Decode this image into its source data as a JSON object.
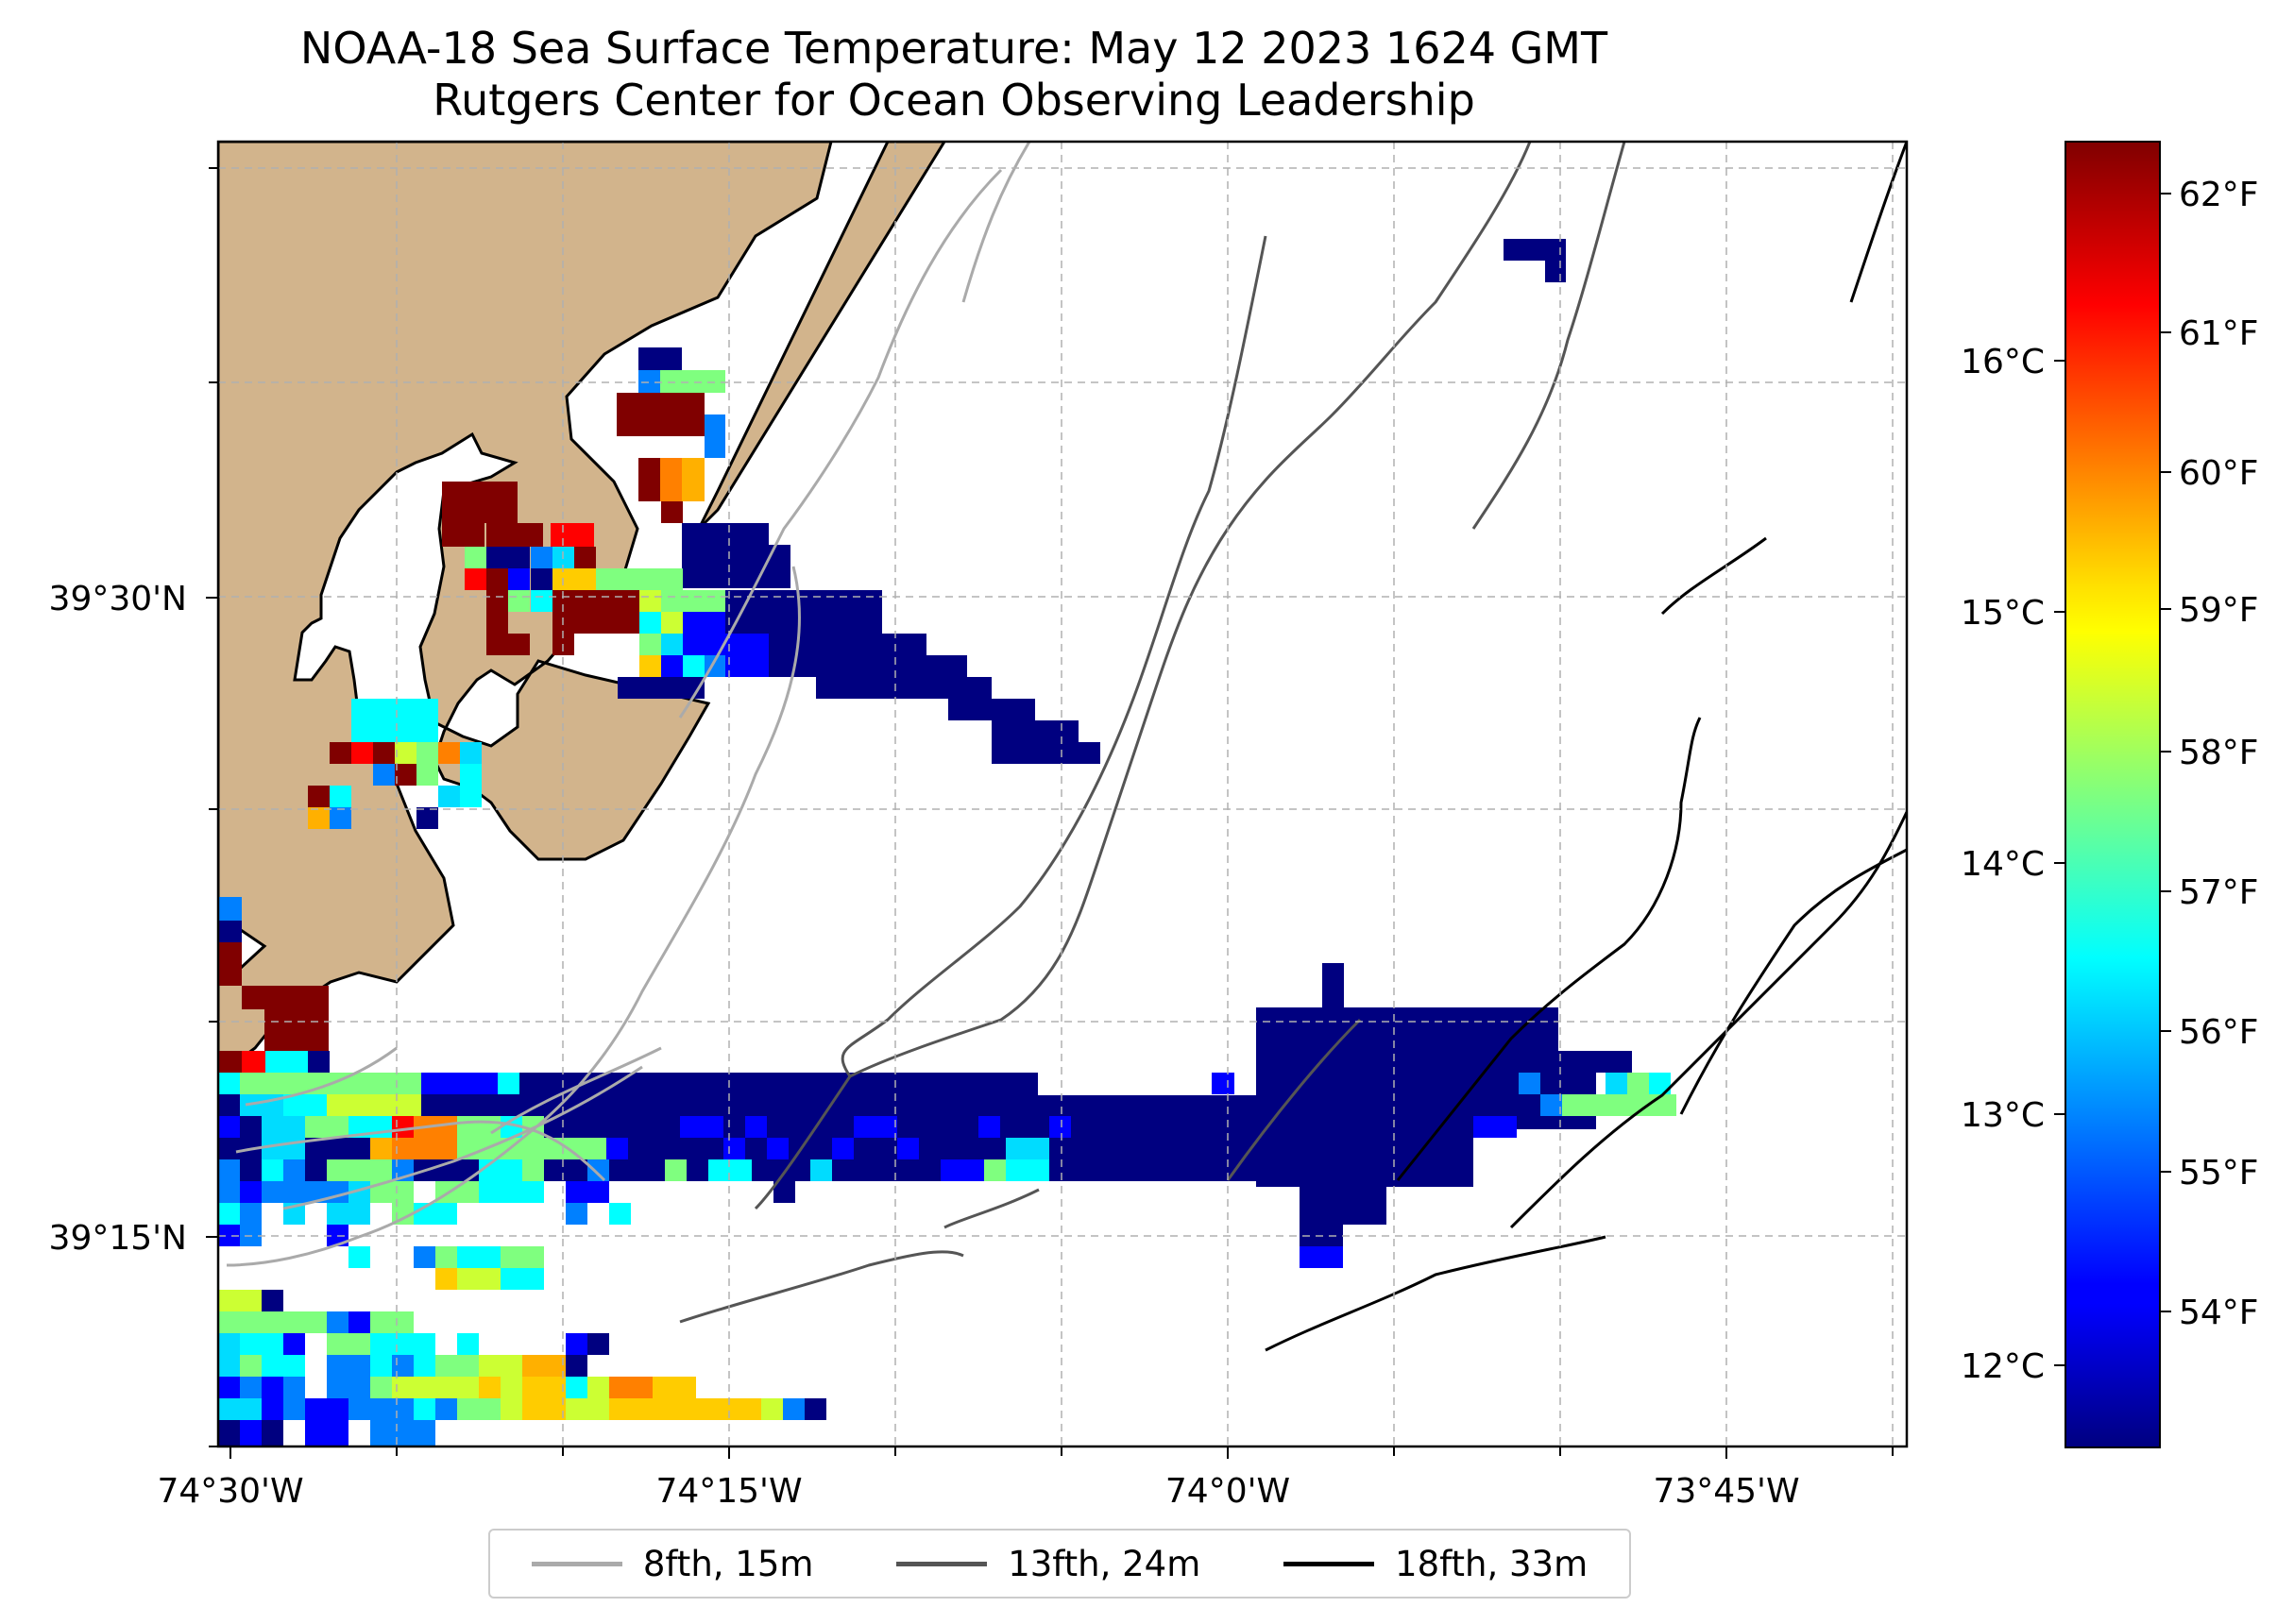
{
  "title": {
    "line1": "NOAA-18 Sea Surface Temperature: May 12 2023 1624 GMT",
    "line2": "Rutgers Center for Ocean Observing Leadership"
  },
  "axes": {
    "lat_ticks": [
      {
        "label": "39°30'N"
      },
      {
        "label": "39°15'N"
      }
    ],
    "lon_ticks": [
      {
        "label": "74°30'W"
      },
      {
        "label": "74°15'W"
      },
      {
        "label": "74°0'W"
      },
      {
        "label": "73°45'W"
      }
    ]
  },
  "colorbar": {
    "fahrenheit_ticks": [
      "62°F",
      "61°F",
      "60°F",
      "59°F",
      "58°F",
      "57°F",
      "56°F",
      "55°F",
      "54°F"
    ],
    "celsius_ticks": [
      "16°C",
      "15°C",
      "14°C",
      "13°C",
      "12°C"
    ],
    "colormap": "jet"
  },
  "legend": {
    "items": [
      {
        "label": "8fth, 15m",
        "color": "#aaaaaa"
      },
      {
        "label": "13fth, 24m",
        "color": "#555555"
      },
      {
        "label": "18fth, 33m",
        "color": "#000000"
      }
    ]
  },
  "colors": {
    "land": "#d2b48c",
    "grid": "#b0b0b0"
  }
}
